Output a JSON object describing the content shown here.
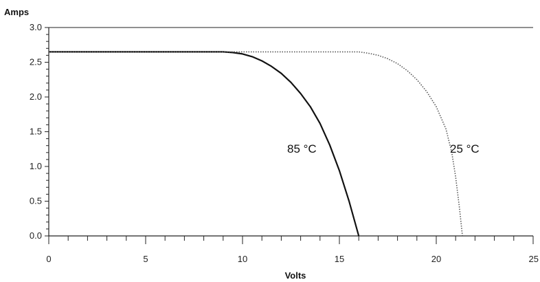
{
  "chart_data": {
    "type": "line",
    "xlabel": "Volts",
    "ylabel": "Amps",
    "xlim": [
      0,
      25
    ],
    "ylim": [
      0,
      3.0
    ],
    "x_ticks": [
      0,
      5,
      10,
      15,
      20,
      25
    ],
    "x_tick_labels": [
      "0",
      "5",
      "10",
      "15",
      "20",
      "25"
    ],
    "y_ticks": [
      0,
      0.5,
      1.0,
      1.5,
      2.0,
      2.5,
      3.0
    ],
    "y_tick_labels": [
      "0.0",
      "0.5",
      "1.0",
      "1.5",
      "2.0",
      "2.5",
      "3.0"
    ],
    "grid": false,
    "series": [
      {
        "name": "85 °C",
        "label_text": "85 °C",
        "style": "solid",
        "color": "#111111",
        "points": [
          [
            0,
            2.65
          ],
          [
            9.0,
            2.65
          ],
          [
            9.5,
            2.64
          ],
          [
            10.0,
            2.62
          ],
          [
            10.5,
            2.58
          ],
          [
            11.0,
            2.52
          ],
          [
            11.5,
            2.44
          ],
          [
            12.0,
            2.34
          ],
          [
            12.5,
            2.21
          ],
          [
            13.0,
            2.05
          ],
          [
            13.5,
            1.86
          ],
          [
            14.0,
            1.62
          ],
          [
            14.5,
            1.31
          ],
          [
            15.0,
            0.94
          ],
          [
            15.5,
            0.5
          ],
          [
            16.0,
            0.0
          ]
        ]
      },
      {
        "name": "25 °C",
        "label_text": "25 °C",
        "style": "dotted",
        "color": "#555555",
        "points": [
          [
            0,
            2.65
          ],
          [
            16.0,
            2.65
          ],
          [
            16.5,
            2.63
          ],
          [
            17.0,
            2.6
          ],
          [
            17.5,
            2.55
          ],
          [
            18.0,
            2.48
          ],
          [
            18.5,
            2.38
          ],
          [
            19.0,
            2.25
          ],
          [
            19.5,
            2.08
          ],
          [
            20.0,
            1.86
          ],
          [
            20.5,
            1.54
          ],
          [
            20.8,
            1.2
          ],
          [
            21.0,
            0.85
          ],
          [
            21.2,
            0.4
          ],
          [
            21.35,
            0.0
          ]
        ]
      }
    ]
  }
}
